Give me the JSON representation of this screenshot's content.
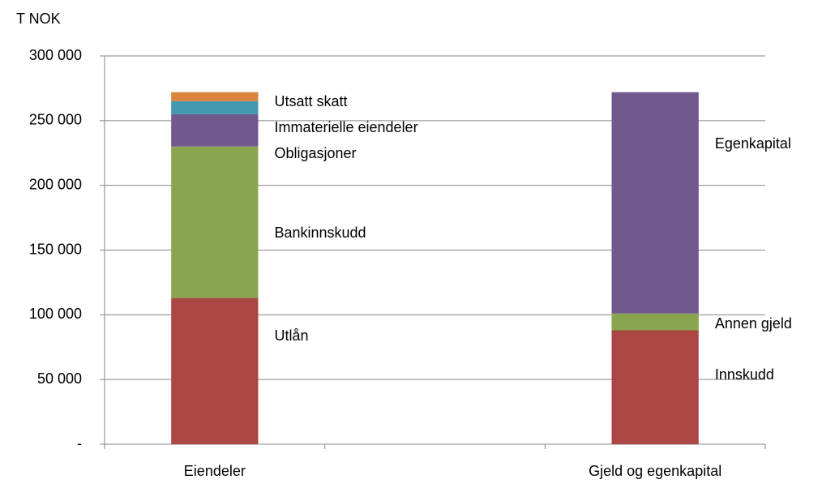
{
  "chart_data": {
    "type": "stacked_bar",
    "y_label": "T NOK",
    "categories": [
      "Eiendeler",
      null,
      "Gjeld og egenkapital"
    ],
    "series": [
      {
        "name": "Utlån",
        "color": "#aa4643",
        "values": [
          113000,
          null,
          null
        ]
      },
      {
        "name": "Bankinnskudd",
        "color": "#89a54e",
        "values": [
          117000,
          null,
          null
        ]
      },
      {
        "name": "Obligasjoner",
        "color": "#71588f",
        "values": [
          25000,
          null,
          null
        ]
      },
      {
        "name": "Immaterielle eiendeler",
        "color": "#4198af",
        "values": [
          10000,
          null,
          null
        ]
      },
      {
        "name": "Utsatt skatt",
        "color": "#db843d",
        "values": [
          7000,
          null,
          null
        ]
      },
      {
        "name": "Innskudd",
        "color": "#aa4643",
        "values": [
          null,
          null,
          88000
        ]
      },
      {
        "name": "Annen gjeld",
        "color": "#89a54e",
        "values": [
          null,
          null,
          13000
        ]
      },
      {
        "name": "Egenkapital",
        "color": "#71588f",
        "values": [
          null,
          null,
          171000
        ]
      }
    ],
    "ylim": [
      0,
      300000
    ],
    "yticks": [
      {
        "value": 0,
        "label": "-"
      },
      {
        "value": 50000,
        "label": "50 000"
      },
      {
        "value": 100000,
        "label": "100 000"
      },
      {
        "value": 150000,
        "label": "150 000"
      },
      {
        "value": 200000,
        "label": "200 000"
      },
      {
        "value": 250000,
        "label": "250 000"
      },
      {
        "value": 300000,
        "label": "300 000"
      }
    ],
    "grid": true
  }
}
